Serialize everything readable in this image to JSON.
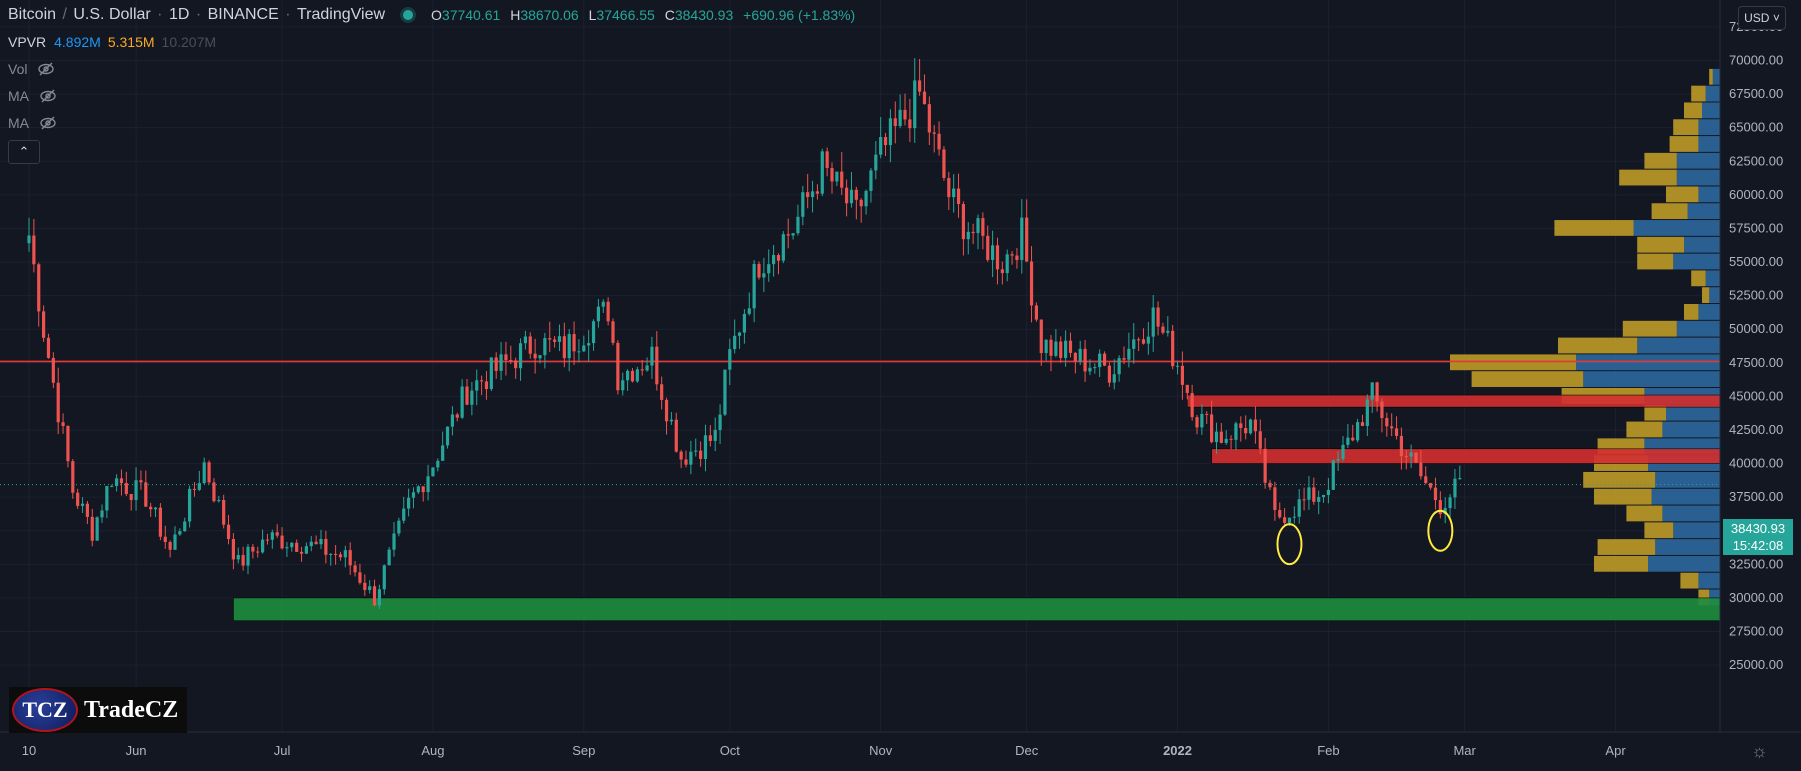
{
  "header": {
    "title_parts": [
      "Bitcoin",
      "U.S. Dollar",
      "1D",
      "BINANCE",
      "TradingView"
    ],
    "ohlc": {
      "O": "37740.61",
      "H": "38670.06",
      "L": "37466.55",
      "C": "38430.93",
      "change": "+690.96 (+1.83%)"
    }
  },
  "vpvr": {
    "label": "VPVR",
    "v1": "4.892M",
    "v2": "5.315M",
    "v3": "10.207M"
  },
  "indicators": [
    {
      "name": "Vol",
      "icon": "eye-crossed-icon"
    },
    {
      "name": "MA",
      "icon": "eye-crossed-icon"
    },
    {
      "name": "MA",
      "icon": "eye-crossed-icon"
    }
  ],
  "currency_button": "USD",
  "price_badge": {
    "price": "38430.93",
    "countdown": "15:42:08"
  },
  "logo": {
    "badge_text": "TCZ",
    "wordmark": "TradeCZ"
  },
  "colors": {
    "up": "#26a69a",
    "down": "#ef5350",
    "background": "#131722",
    "resistance": "#d32f2f",
    "support": "#1e8e3e",
    "key_level": "#e53935",
    "marker": "#ffeb3b",
    "vp_buy": "#2e6da4",
    "vp_sell": "#c9a227"
  },
  "chart_data": {
    "type": "candlestick",
    "title": "Bitcoin / U.S. Dollar",
    "interval": "1D",
    "exchange": "BINANCE",
    "y_axis": {
      "min": 25000,
      "max": 72500,
      "scale": "linear",
      "tick_labels": [
        "72500.00",
        "70000.00",
        "67500.00",
        "65000.00",
        "62500.00",
        "60000.00",
        "57500.00",
        "55000.00",
        "52500.00",
        "50000.00",
        "47500.00",
        "45000.00",
        "42500.00",
        "40000.00",
        "37500.00",
        "35000.00",
        "32500.00",
        "30000.00",
        "27500.00",
        "25000.00"
      ]
    },
    "x_axis": {
      "tick_labels": [
        "10",
        "Jun",
        "Jul",
        "Aug",
        "Sep",
        "Oct",
        "Nov",
        "Dec",
        "2022",
        "Feb",
        "Mar",
        "Apr"
      ],
      "start": "2021-05-10",
      "end": "2022-04-15"
    },
    "close_series": {
      "dates": [
        "2021-05-10",
        "2021-05-13",
        "2021-05-19",
        "2021-05-23",
        "2021-05-27",
        "2021-06-03",
        "2021-06-08",
        "2021-06-15",
        "2021-06-22",
        "2021-06-28",
        "2021-07-06",
        "2021-07-14",
        "2021-07-20",
        "2021-07-27",
        "2021-08-01",
        "2021-08-08",
        "2021-08-14",
        "2021-08-22",
        "2021-08-28",
        "2021-09-06",
        "2021-09-08",
        "2021-09-15",
        "2021-09-21",
        "2021-09-28",
        "2021-10-01",
        "2021-10-07",
        "2021-10-14",
        "2021-10-20",
        "2021-10-27",
        "2021-11-01",
        "2021-11-09",
        "2021-11-15",
        "2021-11-18",
        "2021-11-26",
        "2021-11-30",
        "2021-12-04",
        "2021-12-10",
        "2021-12-18",
        "2021-12-27",
        "2022-01-01",
        "2022-01-05",
        "2022-01-10",
        "2022-01-16",
        "2022-01-21",
        "2022-01-24",
        "2022-01-31",
        "2022-02-05",
        "2022-02-10",
        "2022-02-14",
        "2022-02-20",
        "2022-02-24",
        "2022-02-28"
      ],
      "values": [
        57000,
        50000,
        38000,
        35000,
        39000,
        37500,
        33500,
        40000,
        32500,
        34500,
        34000,
        33000,
        30000,
        37000,
        40000,
        45500,
        47000,
        49000,
        48500,
        51500,
        46500,
        48000,
        40500,
        42000,
        48000,
        55000,
        57500,
        62000,
        58500,
        63000,
        67500,
        60000,
        58000,
        55000,
        57000,
        49000,
        48000,
        47000,
        51000,
        47500,
        43500,
        42000,
        43000,
        36000,
        36500,
        38000,
        41500,
        45000,
        42500,
        39000,
        37000,
        38430.93
      ]
    },
    "last": {
      "open": 37740.61,
      "high": 38670.06,
      "low": 37466.55,
      "close": 38430.93,
      "change": 690.96,
      "change_pct": 1.83
    },
    "horizontal_levels": [
      {
        "kind": "support_zone",
        "from": 28300,
        "to": 30000,
        "start_date": "2021-06-21"
      },
      {
        "kind": "line",
        "price": 47600
      },
      {
        "kind": "resistance_zone",
        "from": 44200,
        "to": 45100,
        "start_date": "2022-01-03"
      },
      {
        "kind": "resistance_zone",
        "from": 40000,
        "to": 41100,
        "start_date": "2022-01-08"
      }
    ],
    "markers": [
      {
        "shape": "ellipse",
        "date": "2022-01-24",
        "price": 34000
      },
      {
        "shape": "ellipse",
        "date": "2022-02-24",
        "price": 35000
      }
    ],
    "volume_profile": {
      "bin_size": 2500,
      "bins": [
        {
          "price": 68750,
          "buy": 0.02,
          "sell": 0.01
        },
        {
          "price": 67500,
          "buy": 0.04,
          "sell": 0.04
        },
        {
          "price": 66250,
          "buy": 0.05,
          "sell": 0.05
        },
        {
          "price": 65000,
          "buy": 0.06,
          "sell": 0.07
        },
        {
          "price": 63750,
          "buy": 0.06,
          "sell": 0.08
        },
        {
          "price": 62500,
          "buy": 0.12,
          "sell": 0.09
        },
        {
          "price": 61250,
          "buy": 0.12,
          "sell": 0.16
        },
        {
          "price": 60000,
          "buy": 0.06,
          "sell": 0.09
        },
        {
          "price": 58750,
          "buy": 0.09,
          "sell": 0.1
        },
        {
          "price": 57500,
          "buy": 0.24,
          "sell": 0.22
        },
        {
          "price": 56250,
          "buy": 0.1,
          "sell": 0.13
        },
        {
          "price": 55000,
          "buy": 0.13,
          "sell": 0.1
        },
        {
          "price": 53750,
          "buy": 0.04,
          "sell": 0.04
        },
        {
          "price": 52500,
          "buy": 0.03,
          "sell": 0.02
        },
        {
          "price": 51250,
          "buy": 0.06,
          "sell": 0.04
        },
        {
          "price": 50000,
          "buy": 0.12,
          "sell": 0.15
        },
        {
          "price": 48750,
          "buy": 0.23,
          "sell": 0.22
        },
        {
          "price": 47500,
          "buy": 0.4,
          "sell": 0.35
        },
        {
          "price": 46250,
          "buy": 0.38,
          "sell": 0.31
        },
        {
          "price": 45000,
          "buy": 0.21,
          "sell": 0.23
        },
        {
          "price": 43750,
          "buy": 0.15,
          "sell": 0.06
        },
        {
          "price": 42500,
          "buy": 0.16,
          "sell": 0.1
        },
        {
          "price": 41250,
          "buy": 0.21,
          "sell": 0.13
        },
        {
          "price": 40000,
          "buy": 0.2,
          "sell": 0.15
        },
        {
          "price": 38750,
          "buy": 0.18,
          "sell": 0.2
        },
        {
          "price": 37500,
          "buy": 0.19,
          "sell": 0.16
        },
        {
          "price": 36250,
          "buy": 0.16,
          "sell": 0.1
        },
        {
          "price": 35000,
          "buy": 0.13,
          "sell": 0.08
        },
        {
          "price": 33750,
          "buy": 0.18,
          "sell": 0.16
        },
        {
          "price": 32500,
          "buy": 0.2,
          "sell": 0.15
        },
        {
          "price": 31250,
          "buy": 0.06,
          "sell": 0.05
        },
        {
          "price": 30000,
          "buy": 0.03,
          "sell": 0.03
        }
      ]
    }
  }
}
